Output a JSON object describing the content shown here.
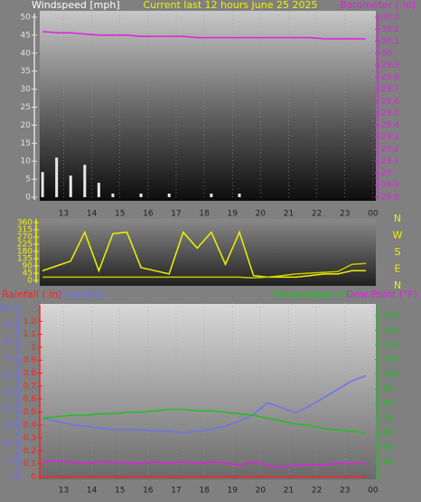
{
  "chart_data": [
    {
      "type": "bar",
      "title": "Current last 12 hours June 25 2025",
      "ylabel": "Windspeed [mph]",
      "y2label": "Barometer [.in]",
      "x": [
        12.25,
        12.75,
        13.25,
        13.75,
        14.25,
        14.75,
        15.25,
        15.75,
        16.25,
        16.75,
        17.25,
        17.75,
        18.25,
        18.75,
        19.25,
        19.75,
        20.25,
        20.75,
        21.25,
        21.75,
        22.25,
        22.75,
        23.25,
        23.75
      ],
      "xlim": [
        12.15,
        24.1
      ],
      "xticks": [
        13,
        14,
        15,
        16,
        17,
        18,
        19,
        20,
        21,
        22,
        23,
        {
          "value": 24,
          "label": "00"
        }
      ],
      "ylim": [
        0,
        50
      ],
      "yticks": [
        0,
        5,
        10,
        15,
        20,
        25,
        30,
        35,
        40,
        45,
        50
      ],
      "y2lim": [
        28.8,
        30.3
      ],
      "y2ticks": [
        28.8,
        28.9,
        {
          "value": 29,
          "label": "29"
        },
        29.1,
        29.2,
        29.3,
        29.4,
        29.5,
        29.6,
        29.7,
        29.8,
        29.9,
        {
          "value": 30,
          "label": "30"
        },
        30.1,
        30.2,
        30.3
      ],
      "series": [
        {
          "type": "bar",
          "color": "#e8e8e8",
          "values": [
            7,
            11,
            6,
            9,
            4,
            1,
            0,
            1,
            0,
            1,
            0,
            0,
            1,
            0,
            1,
            0,
            0,
            0,
            0,
            0,
            0,
            0,
            0,
            0
          ]
        },
        {
          "type": "line",
          "axis": "y2",
          "color": "#e020e0",
          "values": [
            30.18,
            30.17,
            30.17,
            30.16,
            30.15,
            30.15,
            30.15,
            30.14,
            30.14,
            30.14,
            30.14,
            30.13,
            30.13,
            30.13,
            30.13,
            30.13,
            30.13,
            30.13,
            30.13,
            30.13,
            30.12,
            30.12,
            30.12,
            30.12
          ]
        }
      ]
    },
    {
      "type": "line",
      "x": [
        12.25,
        12.75,
        13.25,
        13.75,
        14.25,
        14.75,
        15.25,
        15.75,
        16.25,
        16.75,
        17.25,
        17.75,
        18.25,
        18.75,
        19.25,
        19.75,
        20.25,
        20.75,
        21.25,
        21.75,
        22.25,
        22.75,
        23.25,
        23.75
      ],
      "xlim": [
        12.15,
        24.1
      ],
      "ylim": [
        0,
        360
      ],
      "yticks": [
        0,
        45,
        90,
        135,
        180,
        225,
        270,
        315,
        360
      ],
      "compass_labels": [
        "N",
        "W",
        "S",
        "E",
        "N"
      ],
      "series": [
        {
          "type": "line",
          "color": "#f0f000",
          "values": [
            60,
            90,
            120,
            300,
            60,
            290,
            300,
            80,
            60,
            40,
            300,
            200,
            300,
            100,
            300,
            30,
            20,
            20,
            20,
            30,
            40,
            40,
            60,
            60
          ]
        },
        {
          "type": "line",
          "color": "#c8c800",
          "values": [
            20,
            20,
            20,
            20,
            20,
            20,
            20,
            20,
            20,
            20,
            20,
            20,
            20,
            20,
            20,
            15,
            20,
            30,
            40,
            45,
            50,
            55,
            100,
            105
          ]
        }
      ]
    },
    {
      "type": "line",
      "x": [
        12.25,
        12.75,
        13.25,
        13.75,
        14.25,
        14.75,
        15.25,
        15.75,
        16.25,
        16.75,
        17.25,
        17.75,
        18.25,
        18.75,
        19.25,
        19.75,
        20.25,
        20.75,
        21.25,
        21.75,
        22.25,
        22.75,
        23.25,
        23.75
      ],
      "xlim": [
        12.15,
        24.1
      ],
      "xticks": [
        13,
        14,
        15,
        16,
        17,
        18,
        19,
        20,
        21,
        22,
        23,
        {
          "value": 24,
          "label": "00"
        }
      ],
      "ylim": [
        0,
        1.3
      ],
      "yticks": [
        0,
        0.1,
        0.2,
        0.3,
        0.4,
        0.5,
        0.6,
        0.7,
        0.8,
        0.9,
        {
          "value": 1,
          "label": "1"
        },
        1.1,
        1.2
      ],
      "y2lim": [
        30,
        145
      ],
      "y2ticks": [
        40,
        50,
        60,
        70,
        80,
        90,
        100,
        110,
        120,
        130,
        140
      ],
      "y3lim": [
        0,
        100
      ],
      "y3ticks": [
        0,
        10,
        20,
        30,
        40,
        50,
        60,
        70,
        80,
        90,
        100
      ],
      "series": [
        {
          "name": "Rainfall (.in)",
          "type": "line",
          "color": "#ff2020",
          "values": [
            0,
            0,
            0,
            0,
            0,
            0,
            0,
            0,
            0,
            0,
            0,
            0,
            0,
            0,
            0,
            0,
            0,
            0,
            0,
            0,
            0,
            0,
            0,
            0
          ]
        },
        {
          "name": "Humidity",
          "type": "line",
          "axis": "y3",
          "color": "#7070f0",
          "values": [
            35,
            33,
            31,
            30,
            29,
            28,
            28,
            28,
            27,
            27,
            26,
            27,
            28,
            30,
            33,
            37,
            44,
            41,
            38,
            42,
            47,
            52,
            57,
            60
          ]
        },
        {
          "name": "Temperature (°F)",
          "type": "line",
          "axis": "y2",
          "color": "#20c020",
          "values": [
            70,
            71,
            72,
            72,
            73,
            73,
            74,
            74,
            75,
            76,
            76,
            75,
            75,
            74,
            73,
            72,
            70,
            68,
            66,
            65,
            63,
            62,
            61,
            60
          ]
        },
        {
          "name": "Dew Point (°F)",
          "type": "line",
          "axis": "y2",
          "color": "#e020e0",
          "values": [
            40,
            41,
            40,
            39,
            40,
            40,
            39,
            39,
            40,
            39,
            40,
            39,
            40,
            39,
            38,
            40,
            38,
            36,
            38,
            38,
            38,
            39,
            39,
            39
          ]
        }
      ]
    }
  ]
}
